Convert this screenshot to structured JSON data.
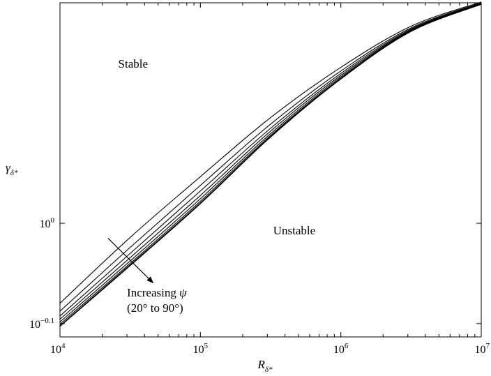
{
  "chart_data": {
    "type": "line",
    "title": "",
    "x_scale": "log",
    "y_scale": "log",
    "xlim": [
      10000,
      10000000
    ],
    "ylim": [
      0.77,
      1.66
    ],
    "xlabel": {
      "main": "R",
      "sub": "δ*"
    },
    "ylabel": {
      "main": "γ",
      "sub": "δ*"
    },
    "x_ticks": [
      {
        "value": 10000,
        "base": "10",
        "exp": "4"
      },
      {
        "value": 100000,
        "base": "10",
        "exp": "5"
      },
      {
        "value": 1000000,
        "base": "10",
        "exp": "6"
      },
      {
        "value": 10000000,
        "base": "10",
        "exp": "7"
      }
    ],
    "y_ticks": [
      {
        "value": 1.0,
        "base": "10",
        "exp": "0"
      },
      {
        "value": 0.794,
        "base": "10",
        "exp": "−0.1"
      }
    ],
    "grid": false,
    "x": [
      10000,
      31623,
      100000,
      316228,
      1000000,
      3162278,
      10000000
    ],
    "series": [
      {
        "values": [
          0.832,
          0.968,
          1.113,
          1.275,
          1.431,
          1.573,
          1.663
        ]
      },
      {
        "values": [
          0.817,
          0.946,
          1.091,
          1.256,
          1.419,
          1.567,
          1.66
        ]
      },
      {
        "values": [
          0.808,
          0.933,
          1.077,
          1.244,
          1.411,
          1.563,
          1.658
        ]
      },
      {
        "values": [
          0.802,
          0.924,
          1.066,
          1.236,
          1.405,
          1.56,
          1.657
        ]
      },
      {
        "values": [
          0.797,
          0.917,
          1.058,
          1.229,
          1.4,
          1.558,
          1.656
        ]
      },
      {
        "values": [
          0.793,
          0.912,
          1.052,
          1.224,
          1.396,
          1.556,
          1.655
        ]
      },
      {
        "values": [
          0.79,
          0.909,
          1.048,
          1.221,
          1.394,
          1.555,
          1.655
        ]
      },
      {
        "values": [
          0.789,
          0.907,
          1.046,
          1.219,
          1.393,
          1.554,
          1.654
        ]
      }
    ],
    "region_labels": [
      {
        "text": "Stable",
        "x": 26000,
        "y": 1.43
      },
      {
        "text": "Unstable",
        "x": 330000,
        "y": 0.975
      }
    ],
    "annotation": {
      "line1_text": "Increasing ",
      "line1_symbol": "ψ",
      "line2": "(20° to 90°)",
      "arrow_from": {
        "x": 22000,
        "y": 0.966
      },
      "arrow_to": {
        "x": 46000,
        "y": 0.872
      },
      "text_anchor": {
        "x": 30000,
        "y": 0.845
      }
    }
  }
}
